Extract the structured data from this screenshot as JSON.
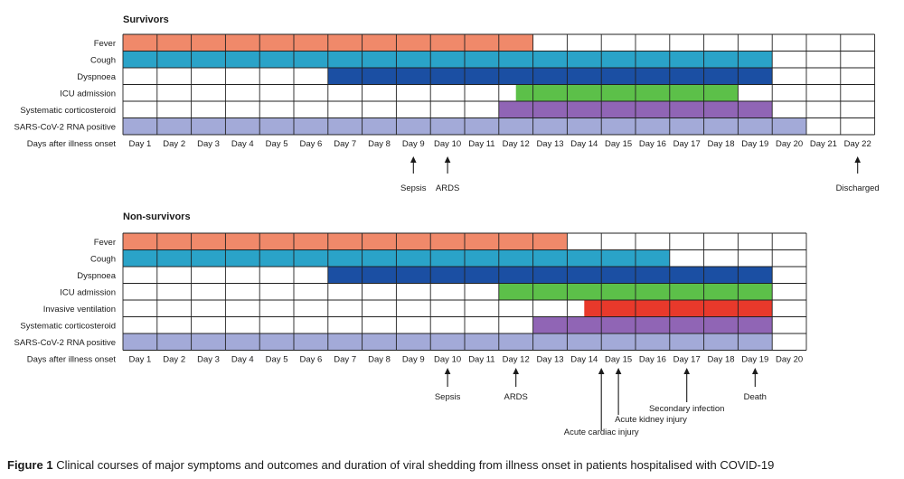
{
  "caption": {
    "label": "Figure 1",
    "text": "Clinical courses of major symptoms and outcomes and duration of viral shedding from illness onset in patients hospitalised with COVID-19"
  },
  "colors": {
    "Fever": "#f0896a",
    "Cough": "#2aa3c8",
    "Dyspnoea": "#1b4fa3",
    "ICU admission": "#5cc049",
    "Invasive ventilation": "#e8392b",
    "Systematic corticosteroid": "#9065b5",
    "SARS-CoV-2 RNA positive": "#a3aad8"
  },
  "chart_data": [
    {
      "type": "gantt",
      "title": "Survivors",
      "day_axis_label": "Days after illness onset",
      "days": [
        "Day 1",
        "Day 2",
        "Day 3",
        "Day 4",
        "Day 5",
        "Day 6",
        "Day 7",
        "Day 8",
        "Day 9",
        "Day 10",
        "Day 11",
        "Day 12",
        "Day 13",
        "Day 14",
        "Day 15",
        "Day 16",
        "Day 17",
        "Day 18",
        "Day 19",
        "Day 20",
        "Day 21",
        "Day 22"
      ],
      "rows": [
        {
          "label": "Fever",
          "start_day": 1,
          "end_day": 12
        },
        {
          "label": "Cough",
          "start_day": 1,
          "end_day": 19
        },
        {
          "label": "Dyspnoea",
          "start_day": 7,
          "end_day": 19
        },
        {
          "label": "ICU admission",
          "start_day": 12.5,
          "end_day": 18
        },
        {
          "label": "Systematic corticosteroid",
          "start_day": 12,
          "end_day": 19
        },
        {
          "label": "SARS-CoV-2 RNA positive",
          "start_day": 1,
          "end_day": 20
        }
      ],
      "events": [
        {
          "label": "Sepsis",
          "day": 9
        },
        {
          "label": "ARDS",
          "day": 10
        },
        {
          "label": "Discharged",
          "day": 22
        }
      ]
    },
    {
      "type": "gantt",
      "title": "Non-survivors",
      "day_axis_label": "Days after illness onset",
      "days": [
        "Day 1",
        "Day 2",
        "Day 3",
        "Day 4",
        "Day 5",
        "Day 6",
        "Day 7",
        "Day 8",
        "Day 9",
        "Day 10",
        "Day 11",
        "Day 12",
        "Day 13",
        "Day 14",
        "Day 15",
        "Day 16",
        "Day 17",
        "Day 18",
        "Day 19",
        "Day 20"
      ],
      "rows": [
        {
          "label": "Fever",
          "start_day": 1,
          "end_day": 13
        },
        {
          "label": "Cough",
          "start_day": 1,
          "end_day": 16
        },
        {
          "label": "Dyspnoea",
          "start_day": 7,
          "end_day": 19
        },
        {
          "label": "ICU admission",
          "start_day": 12,
          "end_day": 19
        },
        {
          "label": "Invasive ventilation",
          "start_day": 14.5,
          "end_day": 19
        },
        {
          "label": "Systematic corticosteroid",
          "start_day": 13,
          "end_day": 19
        },
        {
          "label": "SARS-CoV-2 RNA positive",
          "start_day": 1,
          "end_day": 19
        }
      ],
      "events": [
        {
          "label": "Sepsis",
          "day": 10
        },
        {
          "label": "ARDS",
          "day": 12
        },
        {
          "label": "Acute cardiac injury",
          "day": 14.5
        },
        {
          "label": "Acute kidney injury",
          "day": 15
        },
        {
          "label": "Secondary infection",
          "day": 17
        },
        {
          "label": "Death",
          "day": 19
        }
      ]
    }
  ]
}
